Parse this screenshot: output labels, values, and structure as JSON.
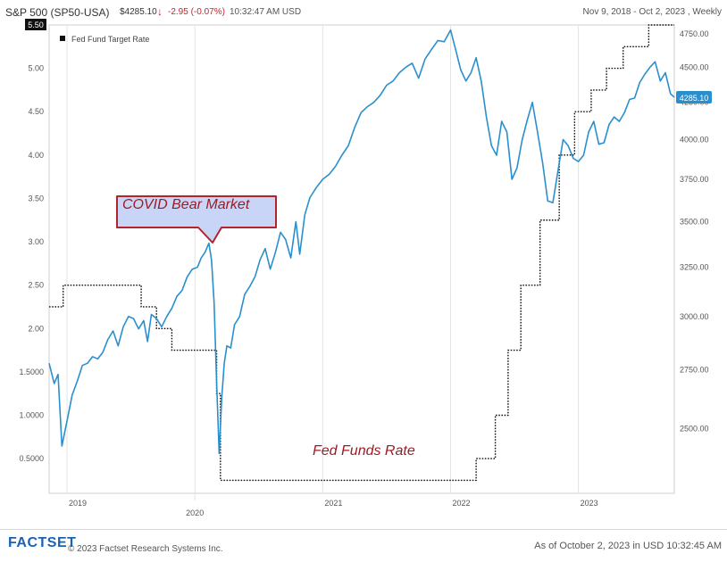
{
  "header": {
    "title": "S&P 500 (SP50-USA)",
    "price": "$4285.10",
    "change": "-2.95",
    "change_pct": "(-0.07%)",
    "time": "10:32:47 AM USD",
    "date_range": "Nov 9, 2018 - Oct 2, 2023 , Weekly"
  },
  "footer": {
    "logo": "FACTSET",
    "copyright": "© 2023 Factset Research Systems Inc.",
    "as_of": "As of October 2, 2023 in USD 10:32:45 AM"
  },
  "colors": {
    "sp500": "#2a8fcd",
    "fed": "#111111",
    "annotation_text": "#9b1b24",
    "down": "#c0262d"
  },
  "chart_data": {
    "type": "line",
    "legend": {
      "fed_label": "Fed Fund Target Rate",
      "position": "top-left"
    },
    "x_ticks": [
      {
        "label": "2019",
        "x": 2019.0
      },
      {
        "label": "2020",
        "x": 2020.0
      },
      {
        "label": "2021",
        "x": 2021.0
      },
      {
        "label": "2022",
        "x": 2022.0
      },
      {
        "label": "2023",
        "x": 2023.0
      }
    ],
    "xlim": [
      2018.86,
      2023.75
    ],
    "left_axis": {
      "ylim": [
        0.1,
        5.5
      ],
      "ticks": [
        "0.5000",
        "1.0000",
        "1.5000",
        "2.00",
        "2.50",
        "3.00",
        "3.50",
        "4.00",
        "4.50",
        "5.00"
      ],
      "tick_values": [
        0.5,
        1.0,
        1.5,
        2.0,
        2.5,
        3.0,
        3.5,
        4.0,
        4.5,
        5.0
      ],
      "badge": "5.50"
    },
    "right_axis": {
      "scale": "log",
      "ylim": [
        2250,
        4820
      ],
      "ticks": [
        "2500.00",
        "2750.00",
        "3000.00",
        "3250.00",
        "3500.00",
        "3750.00",
        "4000.00",
        "4250.00",
        "4500.00",
        "4750.00"
      ],
      "tick_values": [
        2500,
        2750,
        3000,
        3250,
        3500,
        3750,
        4000,
        4250,
        4500,
        4750
      ],
      "last_label": "4285.10",
      "last_value": 4285.1
    },
    "annotations": [
      {
        "text": "COVID Bear Market",
        "style": "callout"
      },
      {
        "text": "Fed Funds Rate",
        "style": "italic"
      }
    ],
    "series": [
      {
        "name": "S&P 500",
        "axis": "right",
        "x": [
          2018.86,
          2018.9,
          2018.93,
          2018.96,
          2019.0,
          2019.04,
          2019.08,
          2019.12,
          2019.16,
          2019.2,
          2019.24,
          2019.28,
          2019.32,
          2019.36,
          2019.4,
          2019.44,
          2019.48,
          2019.52,
          2019.56,
          2019.6,
          2019.63,
          2019.66,
          2019.7,
          2019.74,
          2019.78,
          2019.82,
          2019.86,
          2019.9,
          2019.94,
          2019.98,
          2020.02,
          2020.05,
          2020.08,
          2020.11,
          2020.13,
          2020.15,
          2020.17,
          2020.19,
          2020.21,
          2020.23,
          2020.25,
          2020.28,
          2020.31,
          2020.35,
          2020.39,
          2020.43,
          2020.47,
          2020.51,
          2020.55,
          2020.59,
          2020.63,
          2020.67,
          2020.71,
          2020.75,
          2020.79,
          2020.82,
          2020.86,
          2020.9,
          2020.95,
          2021.0,
          2021.05,
          2021.1,
          2021.15,
          2021.2,
          2021.25,
          2021.3,
          2021.35,
          2021.4,
          2021.45,
          2021.5,
          2021.55,
          2021.6,
          2021.65,
          2021.7,
          2021.75,
          2021.8,
          2021.85,
          2021.9,
          2021.95,
          2022.0,
          2022.04,
          2022.08,
          2022.12,
          2022.16,
          2022.2,
          2022.24,
          2022.28,
          2022.32,
          2022.36,
          2022.4,
          2022.44,
          2022.48,
          2022.52,
          2022.56,
          2022.6,
          2022.64,
          2022.68,
          2022.72,
          2022.76,
          2022.8,
          2022.84,
          2022.88,
          2022.92,
          2022.96,
          2023.0,
          2023.04,
          2023.08,
          2023.12,
          2023.16,
          2023.2,
          2023.24,
          2023.28,
          2023.32,
          2023.36,
          2023.4,
          2023.44,
          2023.48,
          2023.52,
          2023.56,
          2023.6,
          2023.64,
          2023.68,
          2023.72,
          2023.75
        ],
        "y": [
          2780,
          2690,
          2730,
          2430,
          2530,
          2640,
          2700,
          2770,
          2780,
          2810,
          2800,
          2830,
          2890,
          2930,
          2860,
          2950,
          3000,
          2990,
          2940,
          2980,
          2880,
          3010,
          2990,
          2950,
          3000,
          3040,
          3100,
          3130,
          3200,
          3240,
          3250,
          3300,
          3330,
          3380,
          3290,
          3070,
          2700,
          2400,
          2630,
          2780,
          2860,
          2850,
          2960,
          3000,
          3110,
          3150,
          3200,
          3290,
          3350,
          3240,
          3330,
          3440,
          3400,
          3300,
          3500,
          3320,
          3540,
          3640,
          3700,
          3750,
          3780,
          3830,
          3900,
          3960,
          4080,
          4180,
          4220,
          4250,
          4300,
          4370,
          4400,
          4460,
          4500,
          4530,
          4420,
          4560,
          4630,
          4700,
          4690,
          4780,
          4630,
          4480,
          4400,
          4460,
          4570,
          4400,
          4150,
          3960,
          3900,
          4120,
          4050,
          3750,
          3820,
          4000,
          4130,
          4250,
          4050,
          3850,
          3620,
          3610,
          3800,
          4000,
          3960,
          3880,
          3860,
          3900,
          4050,
          4120,
          3970,
          3980,
          4100,
          4150,
          4120,
          4180,
          4270,
          4280,
          4390,
          4450,
          4500,
          4540,
          4400,
          4460,
          4310,
          4285.1
        ]
      },
      {
        "name": "Fed Fund Target Rate",
        "axis": "left",
        "x": [
          2018.86,
          2018.97,
          2019.58,
          2019.7,
          2019.82,
          2020.17,
          2020.2,
          2022.2,
          2022.35,
          2022.45,
          2022.55,
          2022.7,
          2022.85,
          2022.97,
          2023.1,
          2023.22,
          2023.35,
          2023.55,
          2023.75
        ],
        "y": [
          2.25,
          2.5,
          2.25,
          2.0,
          1.75,
          1.25,
          0.25,
          0.5,
          1.0,
          1.75,
          2.5,
          3.25,
          4.0,
          4.5,
          4.75,
          5.0,
          5.25,
          5.5,
          5.5
        ]
      }
    ]
  }
}
